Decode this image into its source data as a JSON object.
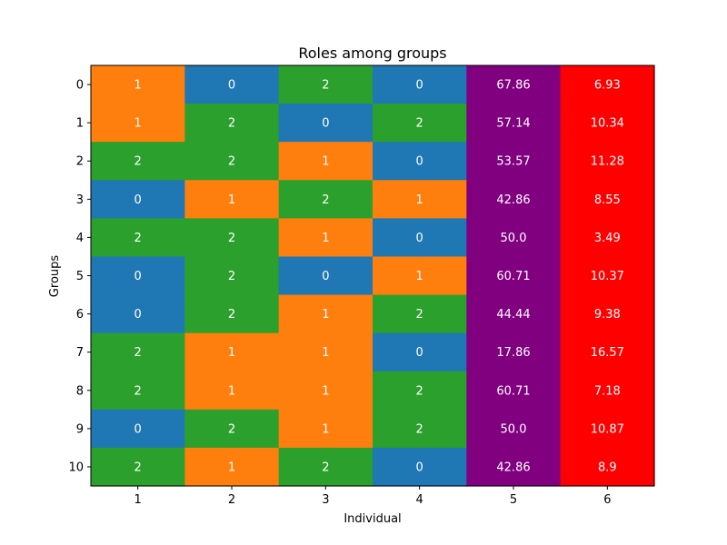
{
  "chart_data": {
    "type": "heatmap",
    "title": "Roles among groups",
    "xlabel": "Individual",
    "ylabel": "Groups",
    "x_ticks": [
      "1",
      "2",
      "3",
      "4",
      "5",
      "6"
    ],
    "y_ticks": [
      "0",
      "1",
      "2",
      "3",
      "4",
      "5",
      "6",
      "7",
      "8",
      "9",
      "10"
    ],
    "role_colors": {
      "0": "#1f77b4",
      "1": "#ff7f0e",
      "2": "#2ca02c"
    },
    "column_colors": {
      "5": "#800080",
      "6": "#ff0000"
    },
    "cell_text_color": "#ffffff",
    "cells": [
      [
        "1",
        "0",
        "2",
        "0",
        "67.86",
        "6.93"
      ],
      [
        "1",
        "2",
        "0",
        "2",
        "57.14",
        "10.34"
      ],
      [
        "2",
        "2",
        "1",
        "0",
        "53.57",
        "11.28"
      ],
      [
        "0",
        "1",
        "2",
        "1",
        "42.86",
        "8.55"
      ],
      [
        "2",
        "2",
        "1",
        "0",
        "50.0",
        "3.49"
      ],
      [
        "0",
        "2",
        "0",
        "1",
        "60.71",
        "10.37"
      ],
      [
        "0",
        "2",
        "1",
        "2",
        "44.44",
        "9.38"
      ],
      [
        "2",
        "1",
        "1",
        "0",
        "17.86",
        "16.57"
      ],
      [
        "2",
        "1",
        "1",
        "2",
        "60.71",
        "7.18"
      ],
      [
        "0",
        "2",
        "1",
        "2",
        "50.0",
        "10.87"
      ],
      [
        "2",
        "1",
        "2",
        "0",
        "42.86",
        "8.9"
      ]
    ]
  }
}
